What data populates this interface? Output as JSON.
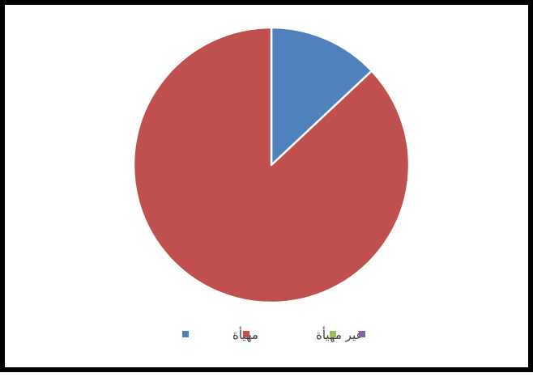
{
  "chart_data": {
    "type": "pie",
    "categories": [
      "مهيأة",
      "غير مهيأة",
      "",
      ""
    ],
    "values": [
      13,
      87,
      0,
      0
    ],
    "colors": [
      "#4f81bd",
      "#c0504d",
      "#9bbb59",
      "#8064a2"
    ],
    "legend_position": "bottom"
  }
}
